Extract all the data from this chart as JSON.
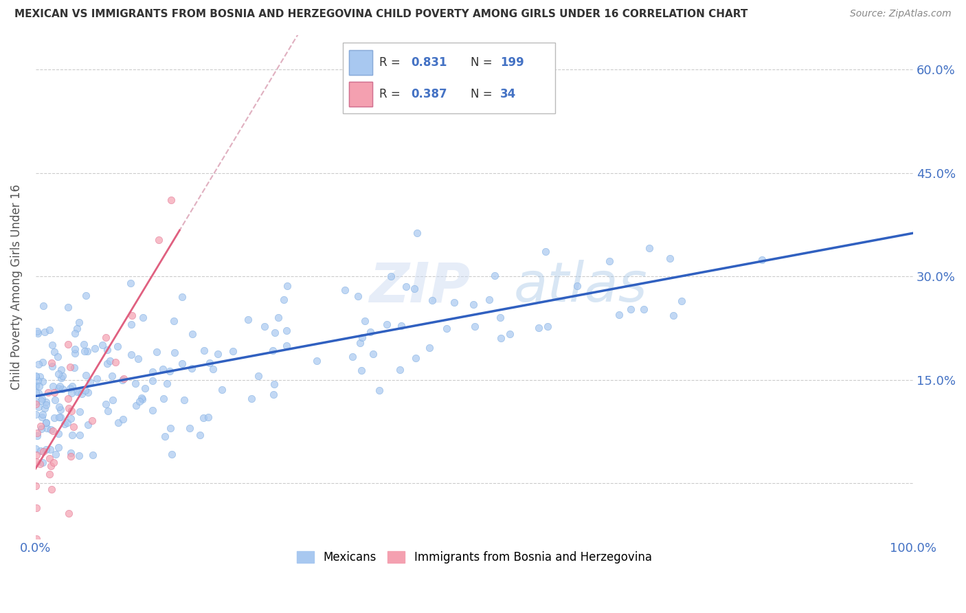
{
  "title": "MEXICAN VS IMMIGRANTS FROM BOSNIA AND HERZEGOVINA CHILD POVERTY AMONG GIRLS UNDER 16 CORRELATION CHART",
  "source": "Source: ZipAtlas.com",
  "ylabel": "Child Poverty Among Girls Under 16",
  "xlim": [
    0,
    1.0
  ],
  "ylim": [
    -0.08,
    0.65
  ],
  "yticks": [
    0.0,
    0.15,
    0.3,
    0.45,
    0.6
  ],
  "watermark_zip": "ZIP",
  "watermark_atlas": "atlas",
  "mexicans_R": 0.831,
  "mexicans_N": 199,
  "bosnia_R": 0.387,
  "bosnia_N": 34,
  "mexicans_color": "#a8c8f0",
  "bosnia_color": "#f4a0b0",
  "mexicans_line_color": "#3060c0",
  "bosnia_line_color": "#e06080",
  "bosnia_dash_color": "#e0b0c0",
  "grid_color": "#cccccc",
  "title_color": "#333333",
  "axis_label_color": "#555555",
  "tick_color": "#4472c4",
  "legend_R_color": "#4472c4",
  "background_color": "#ffffff",
  "seed": 42
}
